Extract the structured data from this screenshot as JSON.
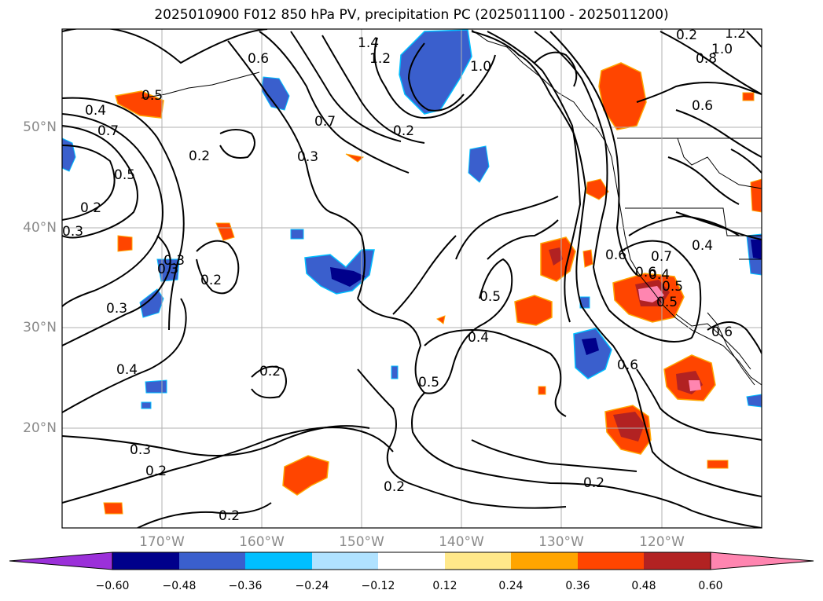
{
  "title": "2025010900 F012 850 hPa PV, precipitation PC (2025011100 - 2025011200)",
  "latitude_labels": [
    "50°N",
    "40°N",
    "30°N",
    "20°N"
  ],
  "longitude_labels": [
    "170°W",
    "160°W",
    "150°W",
    "140°W",
    "130°W",
    "120°W"
  ],
  "colorbar": {
    "ticks": [
      "−0.60",
      "−0.48",
      "−0.36",
      "−0.24",
      "−0.12",
      "0.12",
      "0.24",
      "0.36",
      "0.48",
      "0.60"
    ],
    "colors": [
      "#9b30d9",
      "#00008b",
      "#3a5fcd",
      "#00bfff",
      "#b0e2ff",
      "#ffffff",
      "#ffe88a",
      "#ffa500",
      "#ff4500",
      "#b22222",
      "#ff85b0"
    ]
  },
  "contour_labels": [
    "1.4",
    "1.2",
    "1.0",
    "0.8",
    "1.0",
    "1.2",
    "0.7",
    "0.2",
    "0.3",
    "0.4",
    "0.7",
    "0.5",
    "0.2",
    "0.5",
    "0.4",
    "0.6",
    "0.2",
    "0.6",
    "0.7",
    "0.4",
    "0.3",
    "0.3",
    "0.2",
    "0.3",
    "0.4",
    "0.2",
    "0.2",
    "0.3",
    "0.5",
    "0.4",
    "0.5",
    "0.6",
    "0.6",
    "0.2",
    "0.2",
    "0.2",
    "0.2",
    "0.6",
    "0.6",
    "0.5",
    "0.5",
    "0.3"
  ],
  "colors": {
    "land_outline": "#000000",
    "grid": "#b0b0b0",
    "contour": "#000000"
  }
}
